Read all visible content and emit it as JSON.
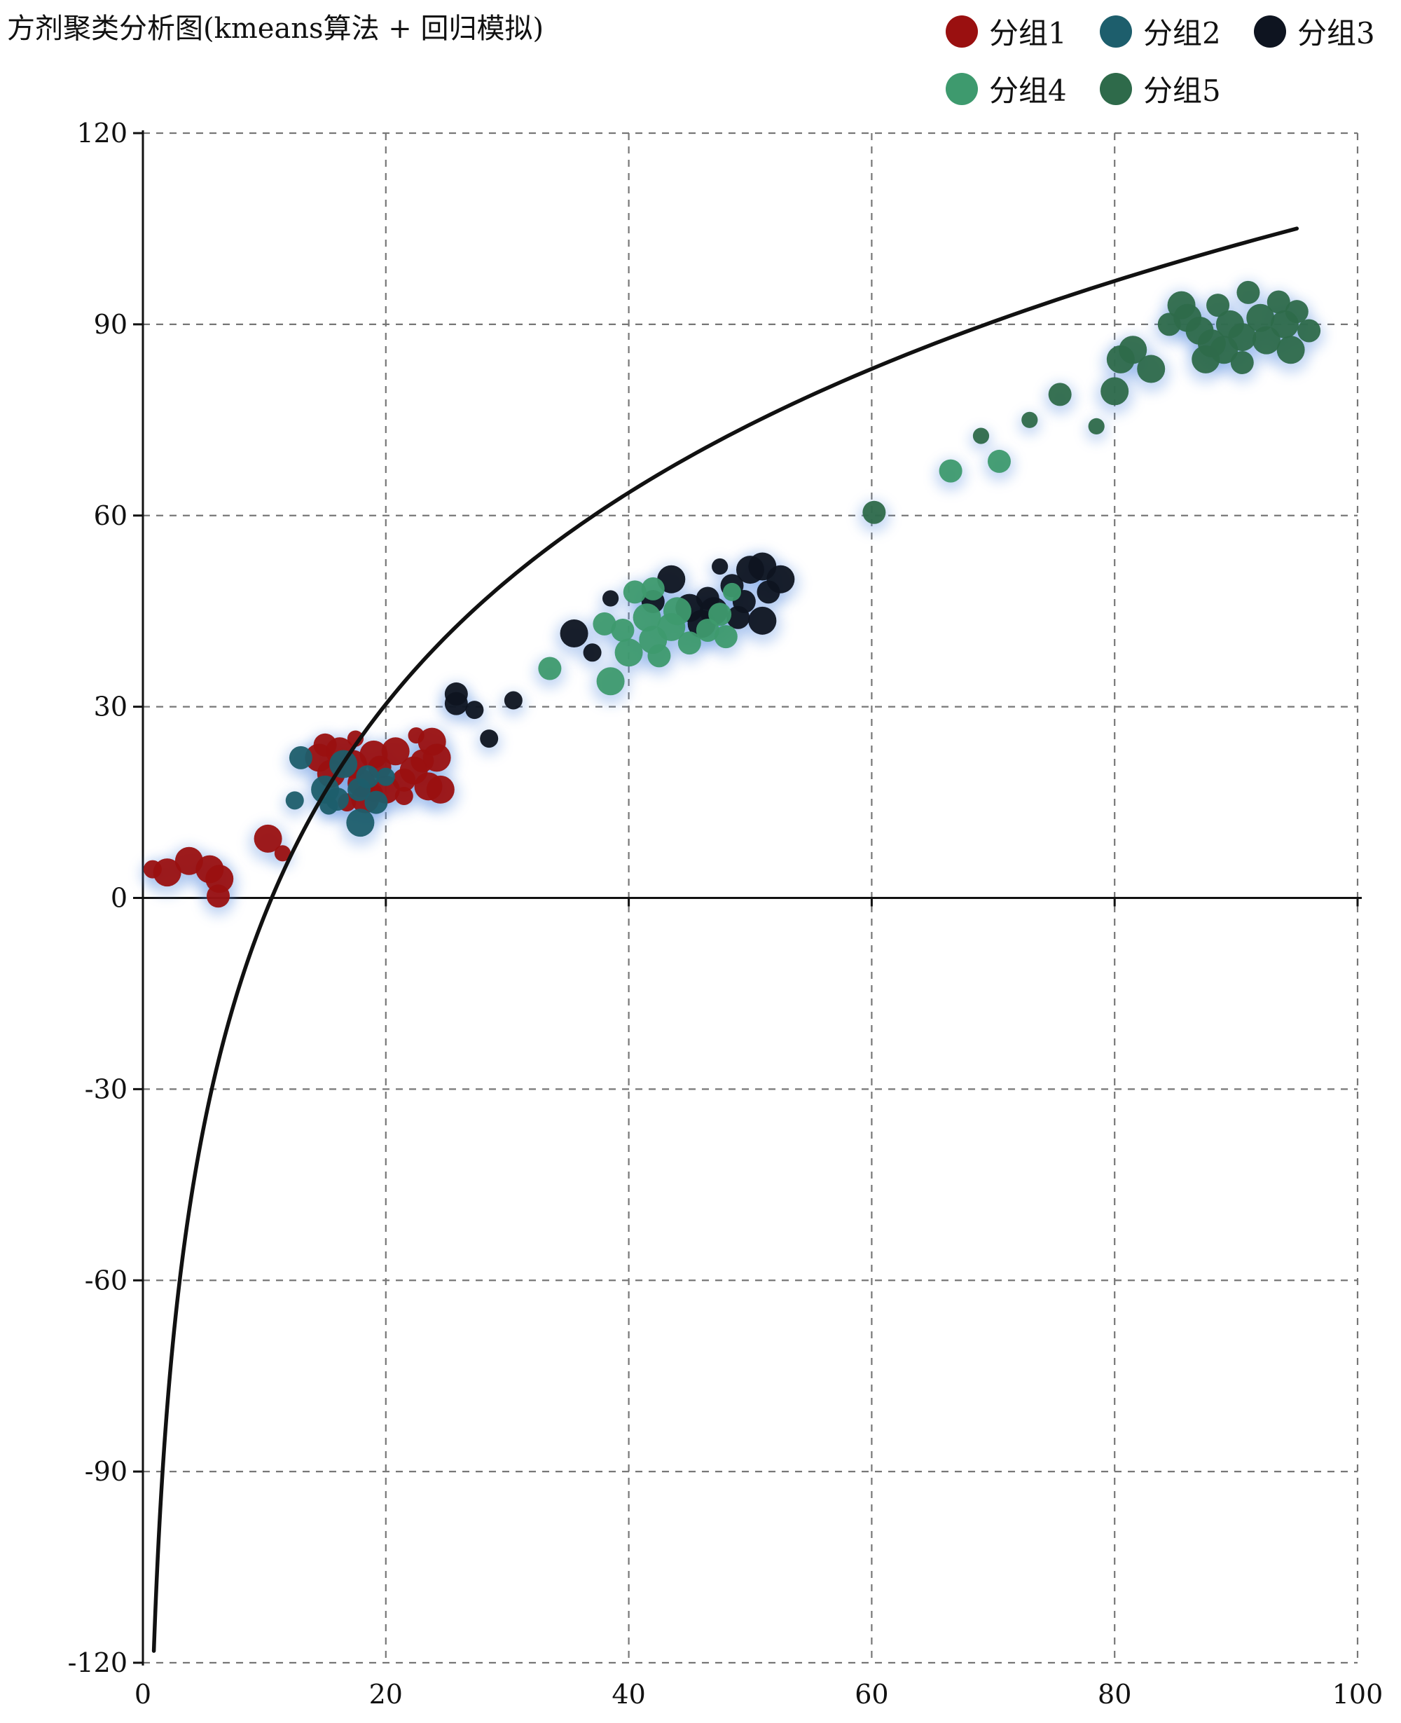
{
  "chart_data": {
    "type": "scatter",
    "title": "方剂聚类分析图(kmeans算法 + 回归模拟)",
    "xlabel": "",
    "ylabel": "",
    "xlim": [
      0,
      100
    ],
    "ylim": [
      -120,
      120
    ],
    "x_ticks": [
      "0",
      "20",
      "40",
      "60",
      "80",
      "100"
    ],
    "y_ticks": [
      "-120",
      "-90",
      "-60",
      "-30",
      "0",
      "30",
      "60",
      "90",
      "120"
    ],
    "x_tick_values": [
      0,
      20,
      40,
      60,
      80,
      100
    ],
    "y_tick_values": [
      -120,
      -90,
      -60,
      -30,
      0,
      30,
      60,
      90,
      120
    ],
    "grid": true,
    "legend_position": "top-right",
    "series": [
      {
        "name": "分组1",
        "color": "#9a1010",
        "points": [
          [
            0.8,
            4.5,
            1
          ],
          [
            2,
            4,
            2
          ],
          [
            3.8,
            5.8,
            2
          ],
          [
            5.5,
            4.5,
            2
          ],
          [
            6.3,
            3,
            2
          ],
          [
            6.2,
            0.3,
            1.5
          ],
          [
            10.3,
            9.3,
            2
          ],
          [
            11.5,
            7,
            0.8
          ],
          [
            14.5,
            22,
            2
          ],
          [
            15.5,
            19.5,
            2
          ],
          [
            16.2,
            23,
            2
          ],
          [
            17.3,
            21,
            2
          ],
          [
            18,
            18,
            2
          ],
          [
            18.3,
            15.5,
            2
          ],
          [
            19,
            22.5,
            2
          ],
          [
            19.5,
            20.5,
            1.5
          ],
          [
            20,
            17,
            2
          ],
          [
            20.8,
            23,
            2
          ],
          [
            21.5,
            18.5,
            1.5
          ],
          [
            22.3,
            20,
            2
          ],
          [
            23,
            21.5,
            1.5
          ],
          [
            23.8,
            24.5,
            2
          ],
          [
            24.2,
            22,
            2
          ],
          [
            23.5,
            17.5,
            2
          ],
          [
            24.5,
            17,
            2
          ],
          [
            21.5,
            16,
            1
          ],
          [
            19,
            16.5,
            1
          ],
          [
            17.5,
            25,
            0.8
          ],
          [
            22.5,
            25.5,
            0.8
          ],
          [
            15,
            24,
            1.5
          ],
          [
            16.8,
            15,
            1
          ]
        ]
      },
      {
        "name": "分组2",
        "color": "#1d5e6c",
        "points": [
          [
            12.5,
            15.3,
            1
          ],
          [
            13,
            22,
            1.5
          ],
          [
            15,
            17,
            2
          ],
          [
            16,
            15.5,
            1.5
          ],
          [
            16.5,
            21,
            2
          ],
          [
            17.8,
            17,
            1.5
          ],
          [
            17.9,
            11.8,
            2
          ],
          [
            18.5,
            19,
            1.5
          ],
          [
            19.2,
            15,
            1.5
          ],
          [
            20,
            19,
            1
          ],
          [
            15.3,
            14.5,
            1
          ]
        ]
      },
      {
        "name": "分组3",
        "color": "#0e1420",
        "points": [
          [
            25.8,
            32,
            1.5
          ],
          [
            25.8,
            30.5,
            1.5
          ],
          [
            27.3,
            29.5,
            1
          ],
          [
            28.5,
            25,
            1
          ],
          [
            30.5,
            31,
            1
          ],
          [
            35.5,
            41.5,
            2
          ],
          [
            37,
            38.5,
            1
          ],
          [
            38.5,
            47,
            0.8
          ],
          [
            42,
            46.5,
            1.5
          ],
          [
            43.5,
            50,
            2
          ],
          [
            45,
            45.5,
            2
          ],
          [
            46,
            43,
            2
          ],
          [
            46.5,
            47,
            1.5
          ],
          [
            47,
            45,
            2
          ],
          [
            47.5,
            52,
            0.8
          ],
          [
            48.5,
            49,
            1.5
          ],
          [
            49,
            44,
            1.5
          ],
          [
            50,
            51.5,
            2
          ],
          [
            51,
            52,
            2
          ],
          [
            51.5,
            48,
            1.5
          ],
          [
            52.5,
            50,
            2
          ],
          [
            51,
            43.5,
            2
          ],
          [
            49.5,
            46.5,
            1.5
          ]
        ]
      },
      {
        "name": "分组4",
        "color": "#3e9a6e",
        "points": [
          [
            33.5,
            36,
            1.5
          ],
          [
            38,
            43,
            1.5
          ],
          [
            38.5,
            34,
            2
          ],
          [
            39.5,
            42,
            1.5
          ],
          [
            40,
            38.5,
            2
          ],
          [
            40.5,
            48,
            1.5
          ],
          [
            41.5,
            44,
            2
          ],
          [
            42,
            40.5,
            2
          ],
          [
            42.5,
            38,
            1.5
          ],
          [
            43.5,
            42.5,
            2
          ],
          [
            44,
            45,
            2
          ],
          [
            45,
            40,
            1.5
          ],
          [
            46.5,
            42,
            1.5
          ],
          [
            47.5,
            44.5,
            1.5
          ],
          [
            48,
            41,
            1.5
          ],
          [
            48.5,
            48,
            1
          ],
          [
            42,
            48.5,
            1.5
          ],
          [
            66.5,
            67,
            1.5
          ],
          [
            70.5,
            68.5,
            1.5
          ]
        ]
      },
      {
        "name": "分组5",
        "color": "#2e6a4a",
        "points": [
          [
            60.2,
            60.5,
            1.5
          ],
          [
            69,
            72.5,
            0.8
          ],
          [
            73,
            75,
            0.8
          ],
          [
            75.5,
            79,
            1.5
          ],
          [
            78.5,
            74,
            0.8
          ],
          [
            80,
            79.5,
            2
          ],
          [
            80.5,
            84.5,
            2
          ],
          [
            81.5,
            86,
            2
          ],
          [
            83,
            83,
            2
          ],
          [
            84.5,
            90,
            1.5
          ],
          [
            85.5,
            93,
            2
          ],
          [
            86,
            91,
            2
          ],
          [
            87,
            89,
            2
          ],
          [
            88,
            87,
            2
          ],
          [
            88.5,
            93,
            1.5
          ],
          [
            89,
            86,
            2
          ],
          [
            89.5,
            90,
            2
          ],
          [
            90.5,
            88,
            2
          ],
          [
            91,
            95,
            1.5
          ],
          [
            92,
            91,
            2
          ],
          [
            92.5,
            87.5,
            2
          ],
          [
            93.5,
            93.5,
            1.5
          ],
          [
            94,
            90,
            2
          ],
          [
            94.5,
            86,
            2
          ],
          [
            95,
            92,
            1.5
          ],
          [
            96,
            89,
            1.5
          ],
          [
            87.5,
            84.5,
            2
          ],
          [
            90.5,
            84,
            1.5
          ]
        ]
      }
    ],
    "regression": {
      "type": "logarithmic",
      "a": 47.9,
      "b": -113.1,
      "x_start": 0.9,
      "x_end": 95
    }
  }
}
